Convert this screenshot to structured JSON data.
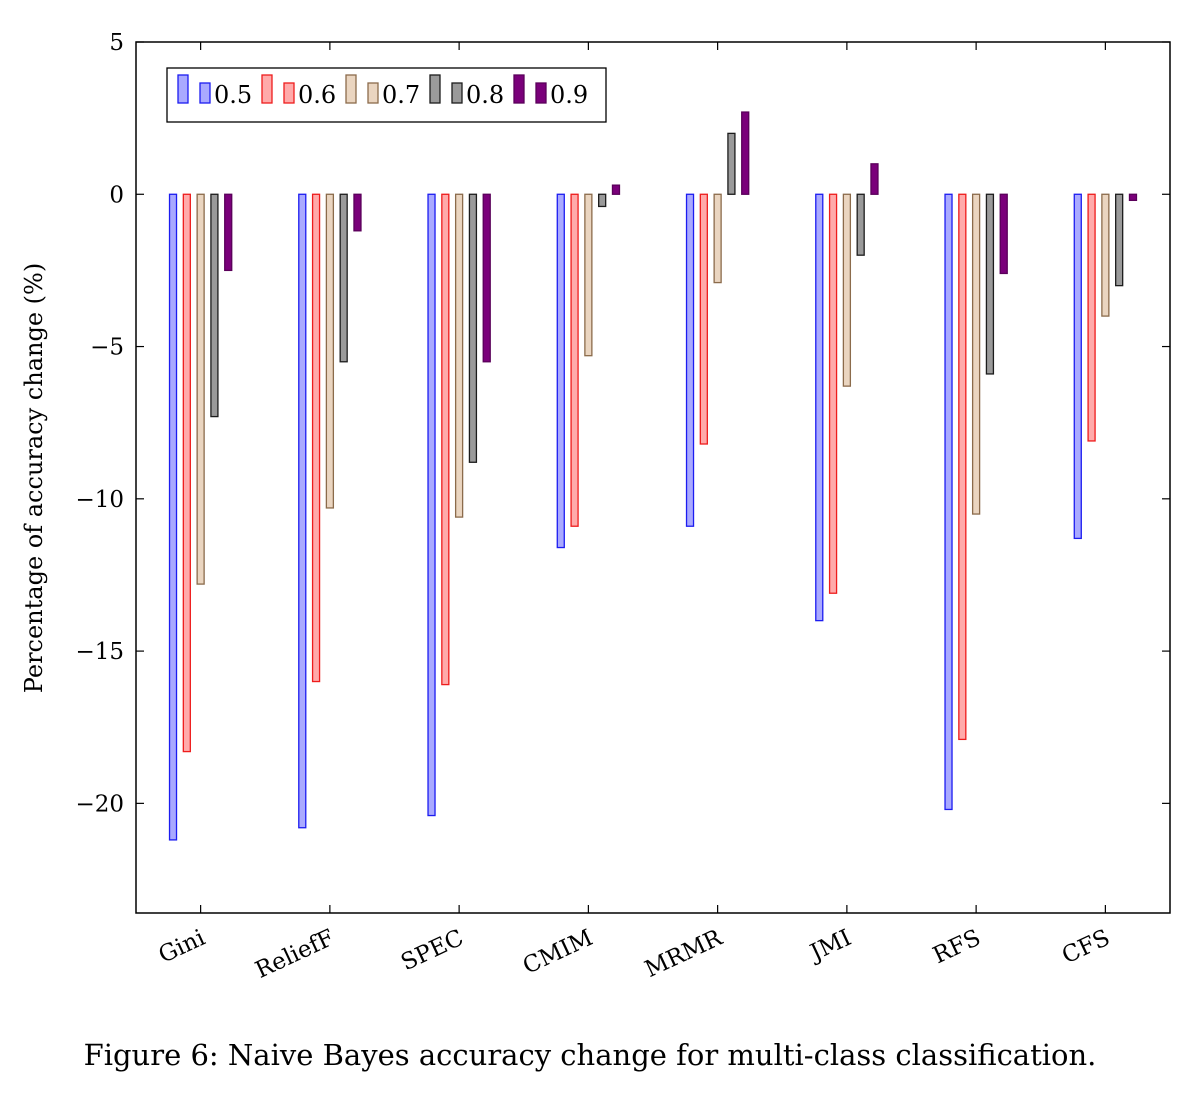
{
  "caption": "Figure 6: Naive Bayes accuracy change for multi-class classification.",
  "chart_data": {
    "type": "bar",
    "ylabel": "Percentage of accuracy change (%)",
    "xlabel": "",
    "ylim": [
      -23.6,
      5
    ],
    "yticks": [
      5,
      0,
      -5,
      -10,
      -15,
      -20
    ],
    "ytick_labels": [
      "5",
      "0",
      "−5",
      "−10",
      "−15",
      "−20"
    ],
    "grid": false,
    "legend_position": "top-left",
    "categories": [
      "Gini",
      "ReliefF",
      "SPEC",
      "CMIM",
      "MRMR",
      "JMI",
      "RFS",
      "CFS"
    ],
    "series": [
      {
        "name": "0.5",
        "fill": "#a9a9ff",
        "stroke": "#1c1cf0",
        "values": [
          -21.2,
          -20.8,
          -20.4,
          -11.6,
          -10.9,
          -14.0,
          -20.2,
          -11.3
        ]
      },
      {
        "name": "0.6",
        "fill": "#ffaaaa",
        "stroke": "#ee1c1c",
        "values": [
          -18.3,
          -16.0,
          -16.1,
          -10.9,
          -8.2,
          -13.1,
          -17.9,
          -8.1
        ]
      },
      {
        "name": "0.7",
        "fill": "#ead5c0",
        "stroke": "#8b6b4b",
        "values": [
          -12.8,
          -10.3,
          -10.6,
          -5.3,
          -2.9,
          -6.3,
          -10.5,
          -4.0
        ]
      },
      {
        "name": "0.8",
        "fill": "#9a9a9a",
        "stroke": "#1c1c1c",
        "values": [
          -7.3,
          -5.5,
          -8.8,
          -0.4,
          2.0,
          -2.0,
          -5.9,
          -3.0
        ]
      },
      {
        "name": "0.9",
        "fill": "#7a007a",
        "stroke": "#5a005a",
        "values": [
          -2.5,
          -1.2,
          -5.5,
          0.3,
          2.7,
          1.0,
          -2.6,
          -0.2
        ]
      }
    ]
  }
}
